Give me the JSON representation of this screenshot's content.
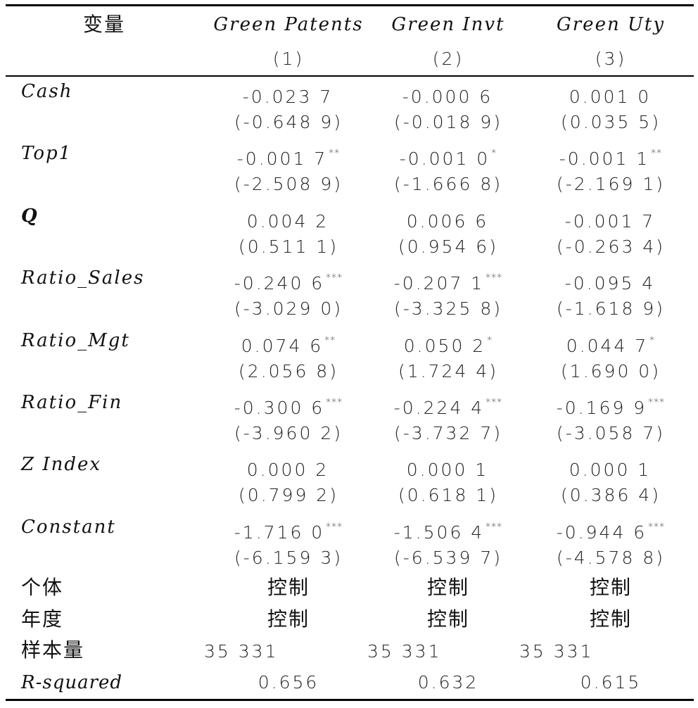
{
  "header": {
    "variable_label": "变量",
    "columns": [
      {
        "name": "Green Patents",
        "number": "(1)"
      },
      {
        "name": "Green Invt",
        "number": "(2)"
      },
      {
        "name": "Green Uty",
        "number": "(3)"
      }
    ]
  },
  "rows": [
    {
      "label": "Cash",
      "coef": [
        "-0.023 7",
        "-0.000 6",
        "0.001 0"
      ],
      "sig": [
        "",
        "",
        ""
      ],
      "t": [
        "(-0.648 9)",
        "(-0.018 9)",
        "(0.035 5)"
      ]
    },
    {
      "label": "Top1",
      "coef": [
        "-0.001 7",
        "-0.001 0",
        "-0.001 1"
      ],
      "sig": [
        "**",
        "*",
        "**"
      ],
      "t": [
        "(-2.508 9)",
        "(-1.666 8)",
        "(-2.169 1)"
      ]
    },
    {
      "label": "Q",
      "coef": [
        "0.004 2",
        "0.006 6",
        "-0.001 7"
      ],
      "sig": [
        "",
        "",
        ""
      ],
      "t": [
        "(0.511 1)",
        "(0.954 6)",
        "(-0.263 4)"
      ]
    },
    {
      "label": "Ratio_Sales",
      "coef": [
        "-0.240 6",
        "-0.207 1",
        "-0.095 4"
      ],
      "sig": [
        "***",
        "***",
        ""
      ],
      "t": [
        "(-3.029 0)",
        "(-3.325 8)",
        "(-1.618 9)"
      ]
    },
    {
      "label": "Ratio_Mgt",
      "coef": [
        "0.074 6",
        "0.050 2",
        "0.044 7"
      ],
      "sig": [
        "**",
        "*",
        "*"
      ],
      "t": [
        "(2.056 8)",
        "(1.724 4)",
        "(1.690 0)"
      ]
    },
    {
      "label": "Ratio_Fin",
      "coef": [
        "-0.300 6",
        "-0.224 4",
        "-0.169 9"
      ],
      "sig": [
        "***",
        "***",
        "***"
      ],
      "t": [
        "(-3.960 2)",
        "(-3.732 7)",
        "(-3.058 7)"
      ]
    },
    {
      "label": "Z Index",
      "coef": [
        "0.000 2",
        "0.000 1",
        "0.000 1"
      ],
      "sig": [
        "",
        "",
        ""
      ],
      "t": [
        "(0.799 2)",
        "(0.618 1)",
        "(0.386 4)"
      ]
    },
    {
      "label": "Constant",
      "coef": [
        "-1.716 0",
        "-1.506 4",
        "-0.944 6"
      ],
      "sig": [
        "***",
        "***",
        "***"
      ],
      "t": [
        "(-6.159 3)",
        "(-6.539 7)",
        "(-4.578 8)"
      ]
    }
  ],
  "controls": [
    {
      "label": "个体",
      "values": [
        "控制",
        "控制",
        "控制"
      ]
    },
    {
      "label": "年度",
      "values": [
        "控制",
        "控制",
        "控制"
      ]
    }
  ],
  "sample": {
    "label": "样本量",
    "values": [
      "35 331",
      "35 331",
      "35 331"
    ]
  },
  "rsq": {
    "label": "R-squared",
    "values": [
      "0.656",
      "0.632",
      "0.615"
    ]
  }
}
